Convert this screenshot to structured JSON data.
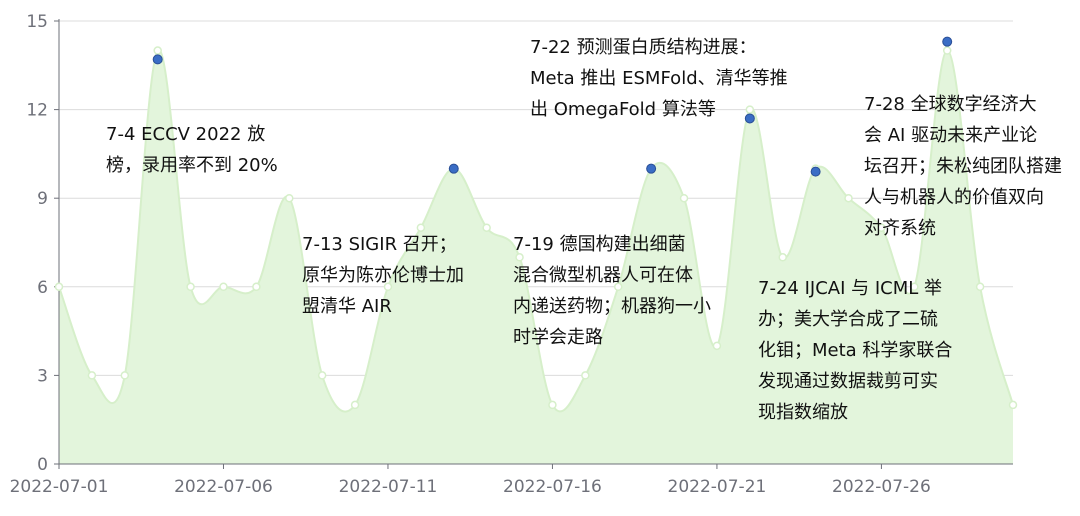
{
  "chart_data": {
    "type": "area",
    "title": "",
    "xlabel": "",
    "ylabel": "",
    "ylim": [
      0,
      15
    ],
    "y_ticks": [
      "0",
      "3",
      "6",
      "9",
      "12",
      "15"
    ],
    "x_ticks": [
      "2022-07-01",
      "2022-07-06",
      "2022-07-11",
      "2022-07-16",
      "2022-07-21",
      "2022-07-26"
    ],
    "x": [
      "2022-07-01",
      "2022-07-02",
      "2022-07-03",
      "2022-07-04",
      "2022-07-05",
      "2022-07-06",
      "2022-07-07",
      "2022-07-08",
      "2022-07-09",
      "2022-07-10",
      "2022-07-11",
      "2022-07-12",
      "2022-07-13",
      "2022-07-14",
      "2022-07-15",
      "2022-07-16",
      "2022-07-17",
      "2022-07-18",
      "2022-07-19",
      "2022-07-20",
      "2022-07-21",
      "2022-07-22",
      "2022-07-23",
      "2022-07-24",
      "2022-07-25",
      "2022-07-26",
      "2022-07-27",
      "2022-07-28",
      "2022-07-29",
      "2022-07-30"
    ],
    "values": [
      6,
      3,
      3,
      14,
      6,
      6,
      6,
      9,
      3,
      2,
      6,
      8,
      10,
      8,
      7,
      2,
      3,
      6,
      10,
      9,
      4,
      12,
      7,
      10,
      9,
      8,
      6,
      14,
      6,
      2
    ],
    "highlights": [
      {
        "x": "2022-07-04",
        "y": 13.7
      },
      {
        "x": "2022-07-13",
        "y": 10
      },
      {
        "x": "2022-07-19",
        "y": 10
      },
      {
        "x": "2022-07-22",
        "y": 11.7
      },
      {
        "x": "2022-07-24",
        "y": 9.9
      },
      {
        "x": "2022-07-28",
        "y": 14.3
      }
    ],
    "colors": {
      "area_fill": "#e3f5dc",
      "line": "#d6efca",
      "point_fill": "#ffffff",
      "highlight": "#3a6dc5",
      "grid": "#dcdcdc",
      "axis": "#6e7079"
    },
    "grid": true,
    "annotations": [
      {
        "id": "a1",
        "lines": [
          "7-4 ECCV 2022 放",
          "榜，录用率不到 20%"
        ]
      },
      {
        "id": "a2",
        "lines": [
          "7-13 SIGIR 召开；",
          "原华为陈亦伦博士加",
          "盟清华 AIR"
        ]
      },
      {
        "id": "a3",
        "lines": [
          "7-22 预测蛋白质结构进展：",
          "Meta 推出 ESMFold、清华等推",
          "出 OmegaFold 算法等"
        ]
      },
      {
        "id": "a4",
        "lines": [
          "7-19 德国构建出细菌",
          "混合微型机器人可在体",
          "内递送药物；机器狗一小",
          "时学会走路"
        ]
      },
      {
        "id": "a5",
        "lines": [
          "7-24 IJCAI 与 ICML 举",
          "办；美大学合成了二硫",
          "化钼；Meta 科学家联合",
          "发现通过数据裁剪可实",
          "现指数缩放"
        ]
      },
      {
        "id": "a6",
        "lines": [
          "7-28 全球数字经济大",
          "会 AI 驱动未来产业论",
          "坛召开；朱松纯团队搭建",
          "人与机器人的价值双向",
          "对齐系统"
        ]
      }
    ]
  }
}
